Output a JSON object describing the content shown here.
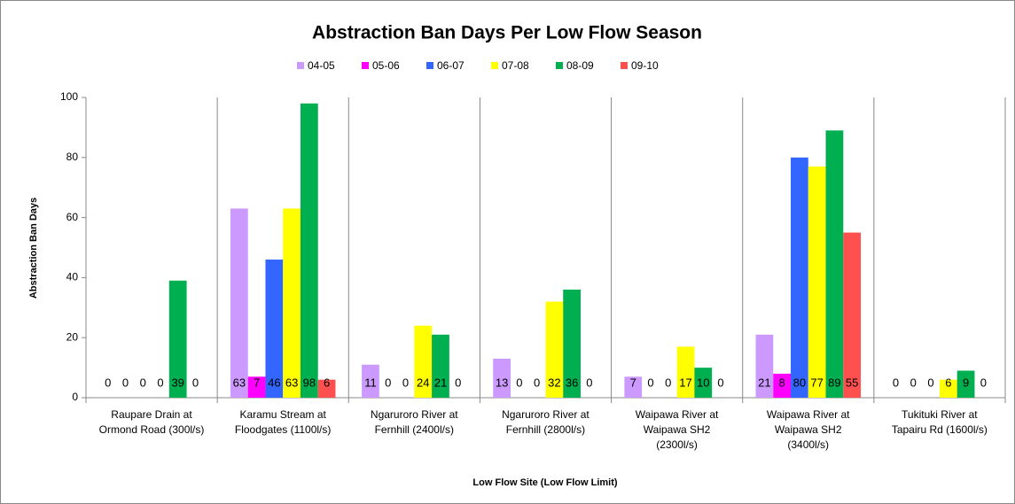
{
  "chart_data": {
    "type": "bar",
    "title": "Abstraction Ban Days Per Low Flow Season",
    "x_label": "Low Flow Site (Low Flow Limit)",
    "y_label": "Abstraction Ban Days",
    "categories": [
      "Raupare Drain at\nOrmond Road (300l/s)",
      "Karamu Stream at\nFloodgates (1100l/s)",
      "Ngaruroro River at\nFernhill (2400l/s)",
      "Ngaruroro River at\nFernhill (2800l/s)",
      "Waipawa River at\nWaipawa SH2\n(2300l/s)",
      "Waipawa River at\nWaipawa SH2\n(3400l/s)",
      "Tukituki River at\nTapairu Rd (1600l/s)"
    ],
    "series": [
      {
        "name": "04-05",
        "color": "#cc99ff",
        "values": [
          0,
          63,
          11,
          13,
          7,
          21,
          0
        ]
      },
      {
        "name": "05-06",
        "color": "#ff00ff",
        "values": [
          0,
          7,
          0,
          0,
          0,
          8,
          0
        ]
      },
      {
        "name": "06-07",
        "color": "#3366ff",
        "values": [
          0,
          46,
          0,
          0,
          0,
          80,
          0
        ]
      },
      {
        "name": "07-08",
        "color": "#ffff00",
        "values": [
          0,
          63,
          24,
          32,
          17,
          77,
          6
        ]
      },
      {
        "name": "08-09",
        "color": "#00b050",
        "values": [
          39,
          98,
          21,
          36,
          10,
          89,
          9
        ]
      },
      {
        "name": "09-10",
        "color": "#ff5050",
        "values": [
          0,
          6,
          0,
          0,
          0,
          55,
          0
        ]
      }
    ],
    "ylim": [
      0,
      100
    ],
    "yticks": [
      0,
      20,
      40,
      60,
      80,
      100
    ],
    "legend": "top"
  }
}
